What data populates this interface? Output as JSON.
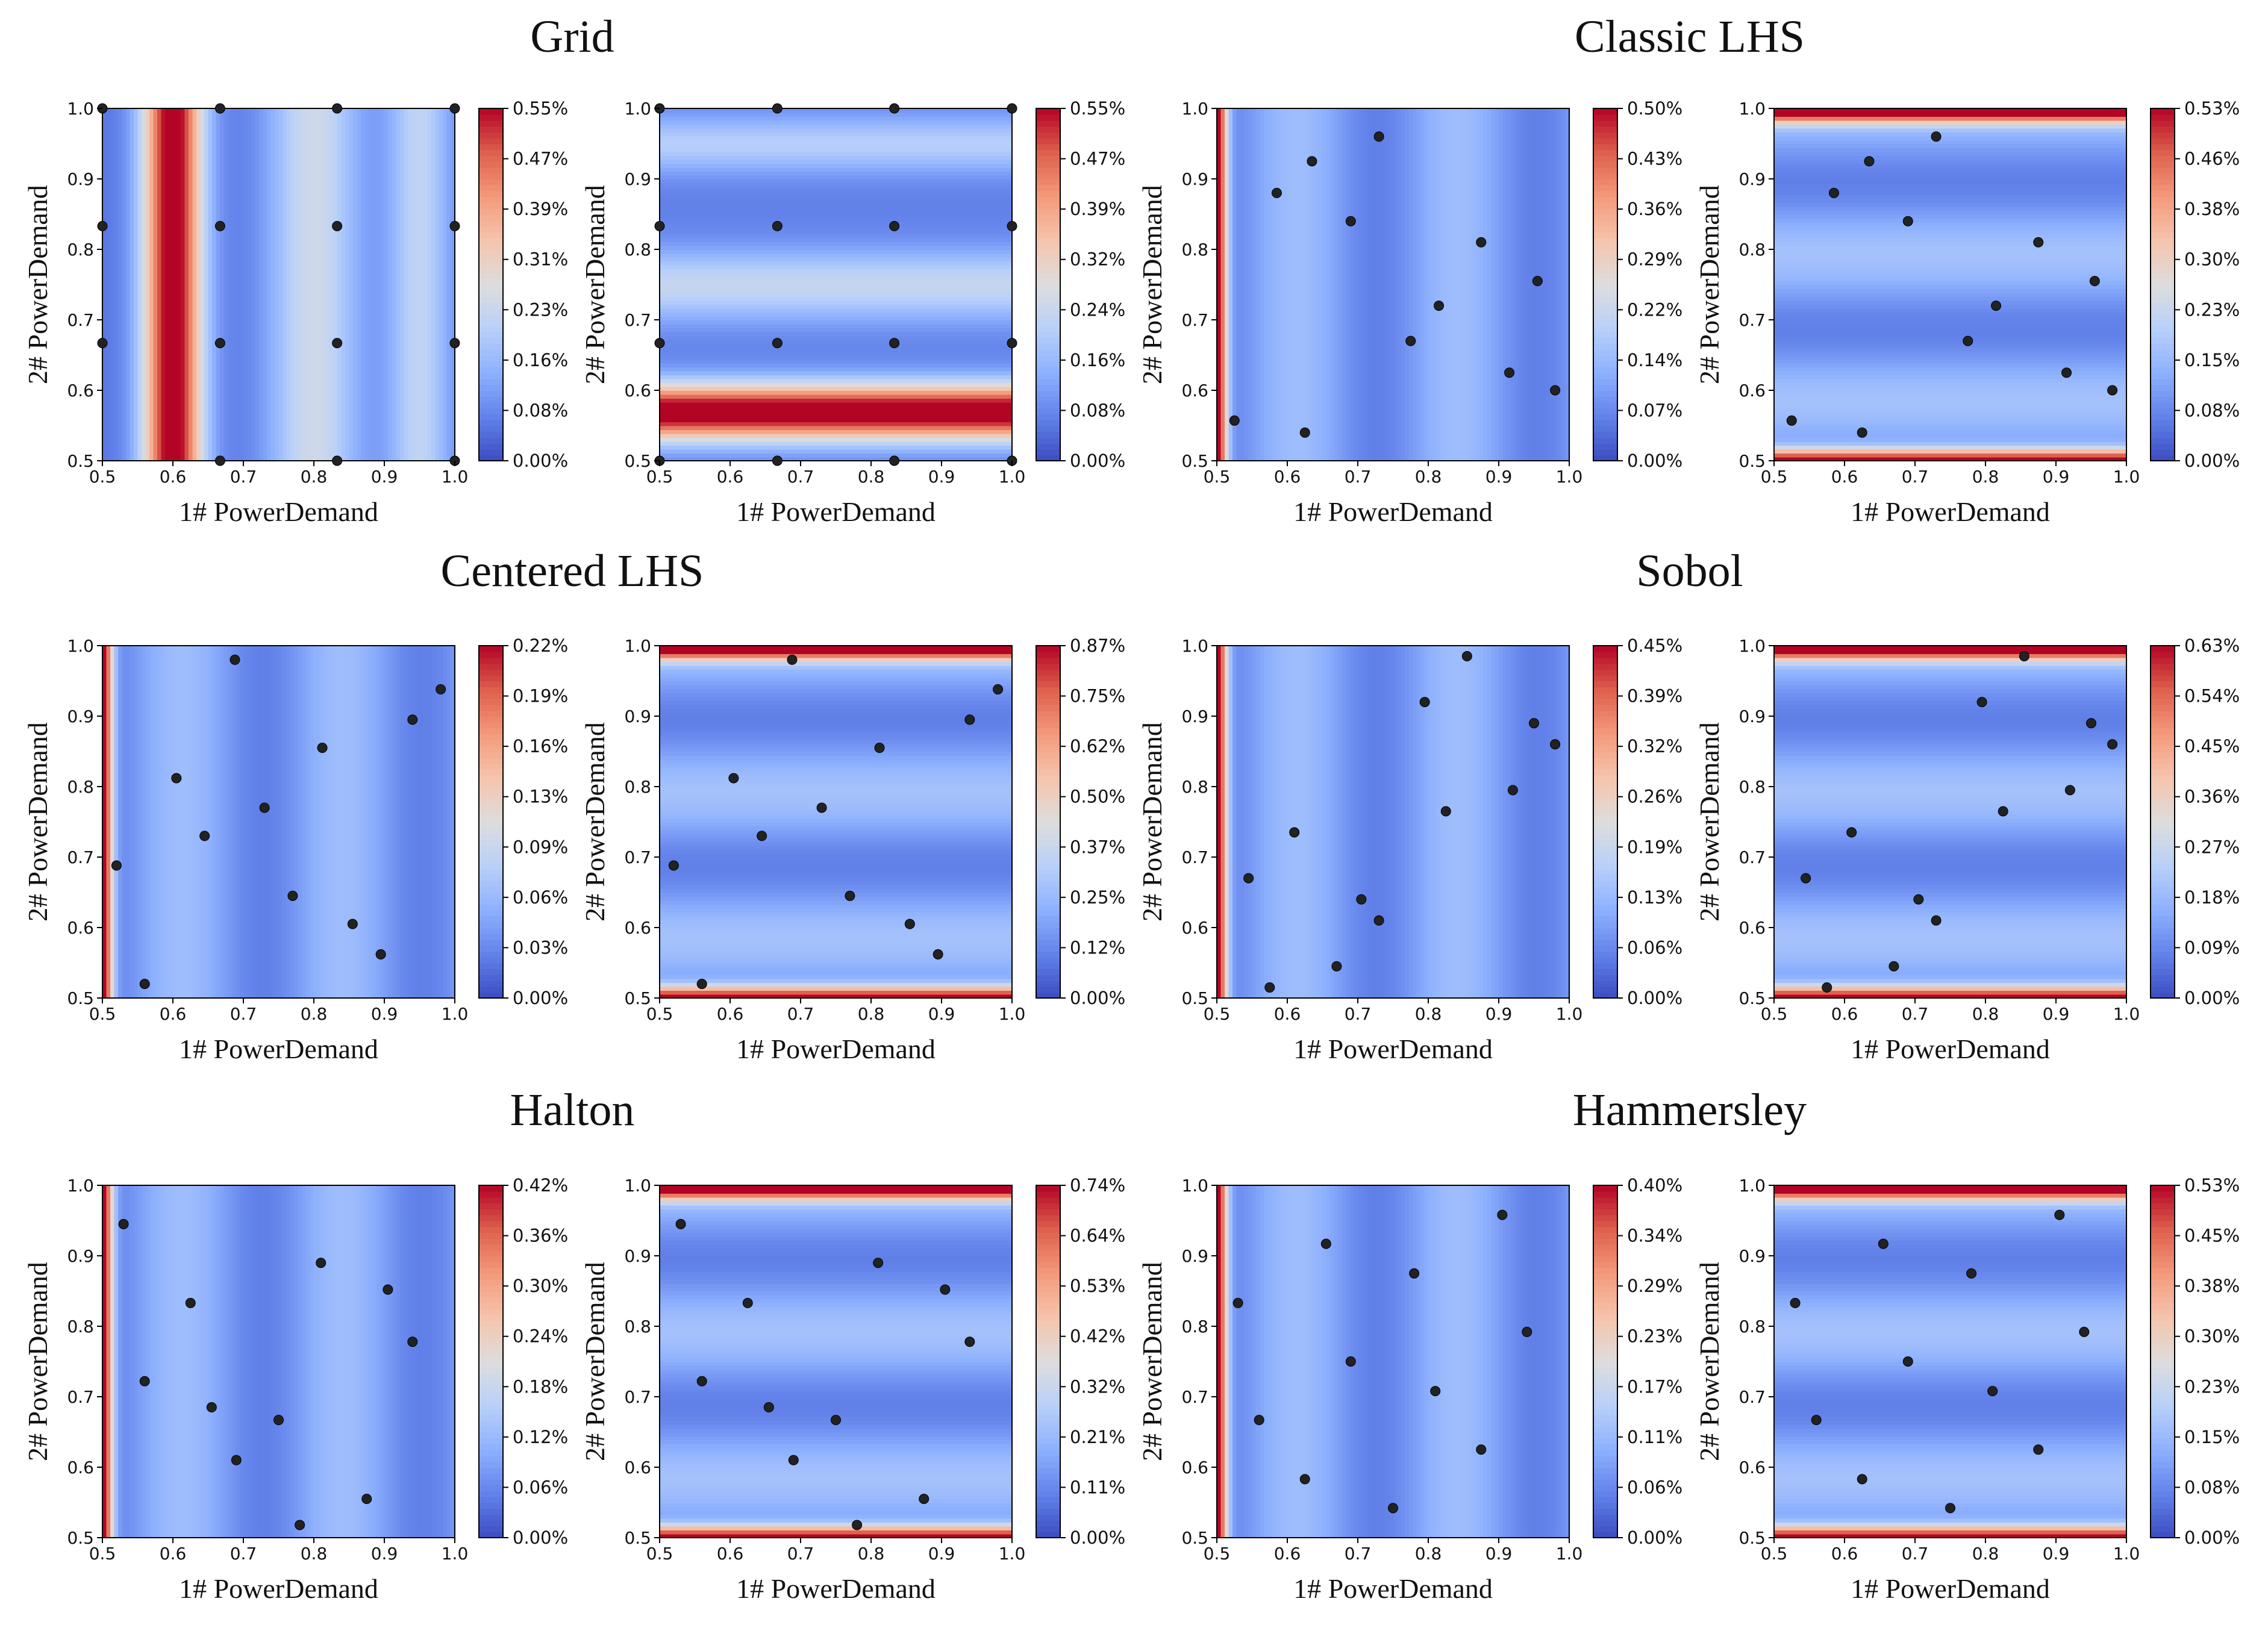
{
  "figure": {
    "group_titles": [
      "Grid",
      "Classic LHS",
      "Centered LHS",
      "Sobol",
      "Halton",
      "Hammersley"
    ]
  },
  "chart_data": [
    {
      "type": "heatmap",
      "group": "Grid",
      "panel": 1,
      "xlabel": "1# PowerDemand",
      "ylabel": "2# PowerDemand",
      "xlim": [
        0.5,
        1.0
      ],
      "ylim": [
        0.5,
        1.0
      ],
      "xticks": [
        "0.5",
        "0.6",
        "0.7",
        "0.8",
        "0.9",
        "1.0"
      ],
      "yticks": [
        "0.5",
        "0.6",
        "0.7",
        "0.8",
        "0.9",
        "1.0"
      ],
      "colorbar": {
        "min": 0,
        "max": 0.55,
        "unit": "%",
        "ticks": [
          "0.00%",
          "0.08%",
          "0.16%",
          "0.23%",
          "0.31%",
          "0.39%",
          "0.47%",
          "0.55%"
        ]
      },
      "field": "grid-x",
      "points": [
        [
          0.5,
          0.667
        ],
        [
          0.5,
          0.833
        ],
        [
          0.5,
          1.0
        ],
        [
          0.667,
          0.5
        ],
        [
          0.667,
          0.667
        ],
        [
          0.667,
          0.833
        ],
        [
          0.667,
          1.0
        ],
        [
          0.833,
          0.5
        ],
        [
          0.833,
          0.667
        ],
        [
          0.833,
          0.833
        ],
        [
          0.833,
          1.0
        ],
        [
          1.0,
          0.5
        ],
        [
          1.0,
          0.667
        ],
        [
          1.0,
          0.833
        ],
        [
          1.0,
          1.0
        ]
      ]
    },
    {
      "type": "heatmap",
      "group": "Grid",
      "panel": 2,
      "xlabel": "1# PowerDemand",
      "ylabel": "2# PowerDemand",
      "xlim": [
        0.5,
        1.0
      ],
      "ylim": [
        0.5,
        1.0
      ],
      "xticks": [
        "0.5",
        "0.6",
        "0.7",
        "0.8",
        "0.9",
        "1.0"
      ],
      "yticks": [
        "0.5",
        "0.6",
        "0.7",
        "0.8",
        "0.9",
        "1.0"
      ],
      "colorbar": {
        "min": 0,
        "max": 0.55,
        "unit": "%",
        "ticks": [
          "0.00%",
          "0.08%",
          "0.16%",
          "0.24%",
          "0.32%",
          "0.39%",
          "0.47%",
          "0.55%"
        ]
      },
      "field": "grid-y",
      "points": [
        [
          0.5,
          0.5
        ],
        [
          0.5,
          0.667
        ],
        [
          0.5,
          0.833
        ],
        [
          0.5,
          1.0
        ],
        [
          0.667,
          0.5
        ],
        [
          0.667,
          0.667
        ],
        [
          0.667,
          0.833
        ],
        [
          0.667,
          1.0
        ],
        [
          0.833,
          0.5
        ],
        [
          0.833,
          0.667
        ],
        [
          0.833,
          0.833
        ],
        [
          0.833,
          1.0
        ],
        [
          1.0,
          0.5
        ],
        [
          1.0,
          0.667
        ],
        [
          1.0,
          0.833
        ],
        [
          1.0,
          1.0
        ]
      ]
    },
    {
      "type": "heatmap",
      "group": "Classic LHS",
      "panel": 1,
      "xlabel": "1# PowerDemand",
      "ylabel": "2# PowerDemand",
      "xlim": [
        0.5,
        1.0
      ],
      "ylim": [
        0.5,
        1.0
      ],
      "xticks": [
        "0.5",
        "0.6",
        "0.7",
        "0.8",
        "0.9",
        "1.0"
      ],
      "yticks": [
        "0.5",
        "0.6",
        "0.7",
        "0.8",
        "0.9",
        "1.0"
      ],
      "colorbar": {
        "min": 0,
        "max": 0.5,
        "unit": "%",
        "ticks": [
          "0.00%",
          "0.07%",
          "0.14%",
          "0.22%",
          "0.29%",
          "0.36%",
          "0.43%",
          "0.50%"
        ]
      },
      "field": "x-wave",
      "points": [
        [
          0.525,
          0.557
        ],
        [
          0.585,
          0.88
        ],
        [
          0.635,
          0.925
        ],
        [
          0.625,
          0.54
        ],
        [
          0.69,
          0.84
        ],
        [
          0.73,
          0.96
        ],
        [
          0.775,
          0.67
        ],
        [
          0.815,
          0.72
        ],
        [
          0.875,
          0.81
        ],
        [
          0.915,
          0.625
        ],
        [
          0.955,
          0.755
        ],
        [
          0.98,
          0.6
        ]
      ]
    },
    {
      "type": "heatmap",
      "group": "Classic LHS",
      "panel": 2,
      "xlabel": "1# PowerDemand",
      "ylabel": "2# PowerDemand",
      "xlim": [
        0.5,
        1.0
      ],
      "ylim": [
        0.5,
        1.0
      ],
      "xticks": [
        "0.5",
        "0.6",
        "0.7",
        "0.8",
        "0.9",
        "1.0"
      ],
      "yticks": [
        "0.5",
        "0.6",
        "0.7",
        "0.8",
        "0.9",
        "1.0"
      ],
      "colorbar": {
        "min": 0,
        "max": 0.53,
        "unit": "%",
        "ticks": [
          "0.00%",
          "0.08%",
          "0.15%",
          "0.23%",
          "0.30%",
          "0.38%",
          "0.46%",
          "0.53%"
        ]
      },
      "field": "y-wave",
      "points": [
        [
          0.525,
          0.557
        ],
        [
          0.585,
          0.88
        ],
        [
          0.635,
          0.925
        ],
        [
          0.625,
          0.54
        ],
        [
          0.69,
          0.84
        ],
        [
          0.73,
          0.96
        ],
        [
          0.775,
          0.67
        ],
        [
          0.815,
          0.72
        ],
        [
          0.875,
          0.81
        ],
        [
          0.915,
          0.625
        ],
        [
          0.955,
          0.755
        ],
        [
          0.98,
          0.6
        ]
      ]
    },
    {
      "type": "heatmap",
      "group": "Centered LHS",
      "panel": 1,
      "xlabel": "1# PowerDemand",
      "ylabel": "2# PowerDemand",
      "xlim": [
        0.5,
        1.0
      ],
      "ylim": [
        0.5,
        1.0
      ],
      "xticks": [
        "0.5",
        "0.6",
        "0.7",
        "0.8",
        "0.9",
        "1.0"
      ],
      "yticks": [
        "0.5",
        "0.6",
        "0.7",
        "0.8",
        "0.9",
        "1.0"
      ],
      "colorbar": {
        "min": 0,
        "max": 0.22,
        "unit": "%",
        "ticks": [
          "0.00%",
          "0.03%",
          "0.06%",
          "0.09%",
          "0.13%",
          "0.16%",
          "0.19%",
          "0.22%"
        ]
      },
      "field": "x-wave",
      "points": [
        [
          0.52,
          0.688
        ],
        [
          0.56,
          0.52
        ],
        [
          0.605,
          0.812
        ],
        [
          0.645,
          0.73
        ],
        [
          0.73,
          0.77
        ],
        [
          0.688,
          0.98
        ],
        [
          0.77,
          0.645
        ],
        [
          0.812,
          0.855
        ],
        [
          0.855,
          0.605
        ],
        [
          0.895,
          0.562
        ],
        [
          0.94,
          0.895
        ],
        [
          0.98,
          0.938
        ]
      ]
    },
    {
      "type": "heatmap",
      "group": "Centered LHS",
      "panel": 2,
      "xlabel": "1# PowerDemand",
      "ylabel": "2# PowerDemand",
      "xlim": [
        0.5,
        1.0
      ],
      "ylim": [
        0.5,
        1.0
      ],
      "xticks": [
        "0.5",
        "0.6",
        "0.7",
        "0.8",
        "0.9",
        "1.0"
      ],
      "yticks": [
        "0.5",
        "0.6",
        "0.7",
        "0.8",
        "0.9",
        "1.0"
      ],
      "colorbar": {
        "min": 0,
        "max": 0.87,
        "unit": "%",
        "ticks": [
          "0.00%",
          "0.12%",
          "0.25%",
          "0.37%",
          "0.50%",
          "0.62%",
          "0.75%",
          "0.87%"
        ]
      },
      "field": "y-wave",
      "points": [
        [
          0.52,
          0.688
        ],
        [
          0.56,
          0.52
        ],
        [
          0.605,
          0.812
        ],
        [
          0.645,
          0.73
        ],
        [
          0.73,
          0.77
        ],
        [
          0.688,
          0.98
        ],
        [
          0.77,
          0.645
        ],
        [
          0.812,
          0.855
        ],
        [
          0.855,
          0.605
        ],
        [
          0.895,
          0.562
        ],
        [
          0.94,
          0.895
        ],
        [
          0.98,
          0.938
        ]
      ]
    },
    {
      "type": "heatmap",
      "group": "Sobol",
      "panel": 1,
      "xlabel": "1# PowerDemand",
      "ylabel": "2# PowerDemand",
      "xlim": [
        0.5,
        1.0
      ],
      "ylim": [
        0.5,
        1.0
      ],
      "xticks": [
        "0.5",
        "0.6",
        "0.7",
        "0.8",
        "0.9",
        "1.0"
      ],
      "yticks": [
        "0.5",
        "0.6",
        "0.7",
        "0.8",
        "0.9",
        "1.0"
      ],
      "colorbar": {
        "min": 0,
        "max": 0.45,
        "unit": "%",
        "ticks": [
          "0.00%",
          "0.06%",
          "0.13%",
          "0.19%",
          "0.26%",
          "0.32%",
          "0.39%",
          "0.45%"
        ]
      },
      "field": "x-wave",
      "points": [
        [
          0.545,
          0.67
        ],
        [
          0.575,
          0.515
        ],
        [
          0.61,
          0.735
        ],
        [
          0.67,
          0.545
        ],
        [
          0.705,
          0.64
        ],
        [
          0.73,
          0.61
        ],
        [
          0.795,
          0.92
        ],
        [
          0.825,
          0.765
        ],
        [
          0.855,
          0.985
        ],
        [
          0.92,
          0.795
        ],
        [
          0.95,
          0.89
        ],
        [
          0.98,
          0.86
        ]
      ]
    },
    {
      "type": "heatmap",
      "group": "Sobol",
      "panel": 2,
      "xlabel": "1# PowerDemand",
      "ylabel": "2# PowerDemand",
      "xlim": [
        0.5,
        1.0
      ],
      "ylim": [
        0.5,
        1.0
      ],
      "xticks": [
        "0.5",
        "0.6",
        "0.7",
        "0.8",
        "0.9",
        "1.0"
      ],
      "yticks": [
        "0.5",
        "0.6",
        "0.7",
        "0.8",
        "0.9",
        "1.0"
      ],
      "colorbar": {
        "min": 0,
        "max": 0.63,
        "unit": "%",
        "ticks": [
          "0.00%",
          "0.09%",
          "0.18%",
          "0.27%",
          "0.36%",
          "0.45%",
          "0.54%",
          "0.63%"
        ]
      },
      "field": "y-wave",
      "points": [
        [
          0.545,
          0.67
        ],
        [
          0.575,
          0.515
        ],
        [
          0.61,
          0.735
        ],
        [
          0.67,
          0.545
        ],
        [
          0.705,
          0.64
        ],
        [
          0.73,
          0.61
        ],
        [
          0.795,
          0.92
        ],
        [
          0.825,
          0.765
        ],
        [
          0.855,
          0.985
        ],
        [
          0.92,
          0.795
        ],
        [
          0.95,
          0.89
        ],
        [
          0.98,
          0.86
        ]
      ]
    },
    {
      "type": "heatmap",
      "group": "Halton",
      "panel": 1,
      "xlabel": "1# PowerDemand",
      "ylabel": "2# PowerDemand",
      "xlim": [
        0.5,
        1.0
      ],
      "ylim": [
        0.5,
        1.0
      ],
      "xticks": [
        "0.5",
        "0.6",
        "0.7",
        "0.8",
        "0.9",
        "1.0"
      ],
      "yticks": [
        "0.5",
        "0.6",
        "0.7",
        "0.8",
        "0.9",
        "1.0"
      ],
      "colorbar": {
        "min": 0,
        "max": 0.42,
        "unit": "%",
        "ticks": [
          "0.00%",
          "0.06%",
          "0.12%",
          "0.18%",
          "0.24%",
          "0.30%",
          "0.36%",
          "0.42%"
        ]
      },
      "field": "x-wave",
      "points": [
        [
          0.53,
          0.945
        ],
        [
          0.56,
          0.722
        ],
        [
          0.625,
          0.833
        ],
        [
          0.655,
          0.685
        ],
        [
          0.69,
          0.61
        ],
        [
          0.75,
          0.667
        ],
        [
          0.78,
          0.518
        ],
        [
          0.81,
          0.89
        ],
        [
          0.875,
          0.555
        ],
        [
          0.905,
          0.852
        ],
        [
          0.94,
          0.778
        ]
      ]
    },
    {
      "type": "heatmap",
      "group": "Halton",
      "panel": 2,
      "xlabel": "1# PowerDemand",
      "ylabel": "2# PowerDemand",
      "xlim": [
        0.5,
        1.0
      ],
      "ylim": [
        0.5,
        1.0
      ],
      "xticks": [
        "0.5",
        "0.6",
        "0.7",
        "0.8",
        "0.9",
        "1.0"
      ],
      "yticks": [
        "0.5",
        "0.6",
        "0.7",
        "0.8",
        "0.9",
        "1.0"
      ],
      "colorbar": {
        "min": 0,
        "max": 0.74,
        "unit": "%",
        "ticks": [
          "0.00%",
          "0.11%",
          "0.21%",
          "0.32%",
          "0.42%",
          "0.53%",
          "0.64%",
          "0.74%"
        ]
      },
      "field": "y-wave",
      "points": [
        [
          0.53,
          0.945
        ],
        [
          0.56,
          0.722
        ],
        [
          0.625,
          0.833
        ],
        [
          0.655,
          0.685
        ],
        [
          0.69,
          0.61
        ],
        [
          0.75,
          0.667
        ],
        [
          0.78,
          0.518
        ],
        [
          0.81,
          0.89
        ],
        [
          0.875,
          0.555
        ],
        [
          0.905,
          0.852
        ],
        [
          0.94,
          0.778
        ]
      ]
    },
    {
      "type": "heatmap",
      "group": "Hammersley",
      "panel": 1,
      "xlabel": "1# PowerDemand",
      "ylabel": "2# PowerDemand",
      "xlim": [
        0.5,
        1.0
      ],
      "ylim": [
        0.5,
        1.0
      ],
      "xticks": [
        "0.5",
        "0.6",
        "0.7",
        "0.8",
        "0.9",
        "1.0"
      ],
      "yticks": [
        "0.5",
        "0.6",
        "0.7",
        "0.8",
        "0.9",
        "1.0"
      ],
      "colorbar": {
        "min": 0,
        "max": 0.4,
        "unit": "%",
        "ticks": [
          "0.00%",
          "0.06%",
          "0.11%",
          "0.17%",
          "0.23%",
          "0.29%",
          "0.34%",
          "0.40%"
        ]
      },
      "field": "x-wave",
      "points": [
        [
          0.53,
          0.833
        ],
        [
          0.56,
          0.667
        ],
        [
          0.625,
          0.583
        ],
        [
          0.655,
          0.917
        ],
        [
          0.69,
          0.75
        ],
        [
          0.75,
          0.542
        ],
        [
          0.78,
          0.875
        ],
        [
          0.81,
          0.708
        ],
        [
          0.875,
          0.625
        ],
        [
          0.905,
          0.958
        ],
        [
          0.94,
          0.792
        ]
      ]
    },
    {
      "type": "heatmap",
      "group": "Hammersley",
      "panel": 2,
      "xlabel": "1# PowerDemand",
      "ylabel": "2# PowerDemand",
      "xlim": [
        0.5,
        1.0
      ],
      "ylim": [
        0.5,
        1.0
      ],
      "xticks": [
        "0.5",
        "0.6",
        "0.7",
        "0.8",
        "0.9",
        "1.0"
      ],
      "yticks": [
        "0.5",
        "0.6",
        "0.7",
        "0.8",
        "0.9",
        "1.0"
      ],
      "colorbar": {
        "min": 0,
        "max": 0.53,
        "unit": "%",
        "ticks": [
          "0.00%",
          "0.08%",
          "0.15%",
          "0.23%",
          "0.30%",
          "0.38%",
          "0.45%",
          "0.53%"
        ]
      },
      "field": "y-wave",
      "points": [
        [
          0.53,
          0.833
        ],
        [
          0.56,
          0.667
        ],
        [
          0.625,
          0.583
        ],
        [
          0.655,
          0.917
        ],
        [
          0.69,
          0.75
        ],
        [
          0.75,
          0.542
        ],
        [
          0.78,
          0.875
        ],
        [
          0.81,
          0.708
        ],
        [
          0.875,
          0.625
        ],
        [
          0.905,
          0.958
        ],
        [
          0.94,
          0.792
        ]
      ]
    }
  ]
}
